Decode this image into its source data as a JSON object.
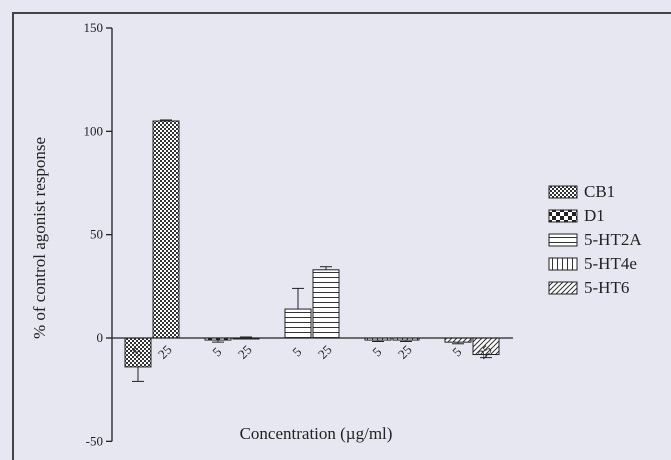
{
  "chart_data": {
    "type": "bar",
    "title": "",
    "xlabel": "Concentration (µg/ml)",
    "ylabel": "% of control agonist response",
    "ylim": [
      -50,
      150
    ],
    "yticks": [
      -50,
      0,
      50,
      100,
      150
    ],
    "legend_position": "right",
    "series": [
      {
        "name": "CB1",
        "pattern": "fine-check",
        "categories": [
          "5",
          "25"
        ],
        "values": [
          -14,
          105
        ],
        "errors": [
          7,
          0.5
        ]
      },
      {
        "name": "D1",
        "pattern": "coarse-check",
        "categories": [
          "5",
          "25"
        ],
        "values": [
          -1,
          0
        ],
        "errors": [
          1,
          0.5
        ]
      },
      {
        "name": "5-HT2A",
        "pattern": "horizontal",
        "categories": [
          "5",
          "25"
        ],
        "values": [
          14,
          33
        ],
        "errors": [
          10,
          1.5
        ]
      },
      {
        "name": "5-HT4e",
        "pattern": "vertical",
        "categories": [
          "5",
          "25"
        ],
        "values": [
          -1,
          -1
        ],
        "errors": [
          0.7,
          0.7
        ]
      },
      {
        "name": "5-HT6",
        "pattern": "diagonal",
        "categories": [
          "5",
          "25"
        ],
        "values": [
          -2,
          -8
        ],
        "errors": [
          0.8,
          1.5
        ]
      }
    ]
  }
}
